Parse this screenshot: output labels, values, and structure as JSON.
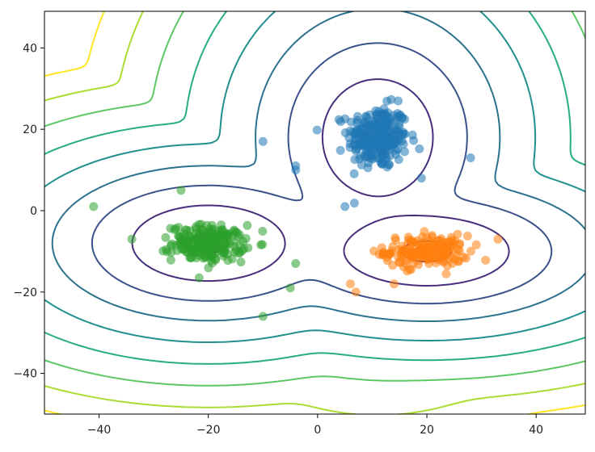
{
  "chart_data": {
    "type": "scatter",
    "title": "",
    "xlabel": "",
    "ylabel": "",
    "xlim": [
      -50,
      49
    ],
    "ylim": [
      -50,
      49
    ],
    "grid": false,
    "legend": "none",
    "x_ticks": [
      -40,
      -20,
      0,
      20,
      40
    ],
    "y_ticks": [
      -40,
      -20,
      0,
      20,
      40
    ],
    "x_tick_labels": [
      "−40",
      "−20",
      "0",
      "20",
      "40"
    ],
    "y_tick_labels": [
      "−40",
      "−20",
      "0",
      "20",
      "40"
    ],
    "colormap": [
      "#440154",
      "#472e7c",
      "#3b518b",
      "#2c718e",
      "#21908d",
      "#27ad81",
      "#5cc863",
      "#aadc32",
      "#fde725"
    ],
    "clusters": [
      {
        "color": "#1f77b4",
        "center": [
          11,
          18
        ],
        "spread": [
          5,
          7
        ],
        "count": 260,
        "outliers": [
          [
            -10,
            17
          ],
          [
            5,
            1
          ],
          [
            28,
            13
          ],
          [
            -4,
            11
          ],
          [
            -4,
            10
          ],
          [
            19,
            8
          ]
        ]
      },
      {
        "color": "#ff7f0e",
        "center": [
          20,
          -10
        ],
        "spread": [
          7,
          3.5
        ],
        "count": 180,
        "outliers": [
          [
            6,
            -18
          ],
          [
            7,
            -20
          ],
          [
            14,
            -18
          ],
          [
            33,
            -7
          ]
        ]
      },
      {
        "color": "#2ca02c",
        "center": [
          -20,
          -8
        ],
        "spread": [
          6,
          4
        ],
        "count": 220,
        "outliers": [
          [
            -41,
            1
          ],
          [
            -25,
            5
          ],
          [
            -10,
            -26
          ],
          [
            -5,
            -19
          ],
          [
            -34,
            -7
          ],
          [
            -4,
            -13
          ]
        ]
      }
    ],
    "components": [
      {
        "mean": [
          11,
          18
        ],
        "sd": [
          6.0,
          8.5
        ]
      },
      {
        "mean": [
          20,
          -10
        ],
        "sd": [
          8.0,
          4.5
        ]
      },
      {
        "mean": [
          -20,
          -8
        ],
        "sd": [
          7.5,
          5.0
        ]
      }
    ]
  }
}
